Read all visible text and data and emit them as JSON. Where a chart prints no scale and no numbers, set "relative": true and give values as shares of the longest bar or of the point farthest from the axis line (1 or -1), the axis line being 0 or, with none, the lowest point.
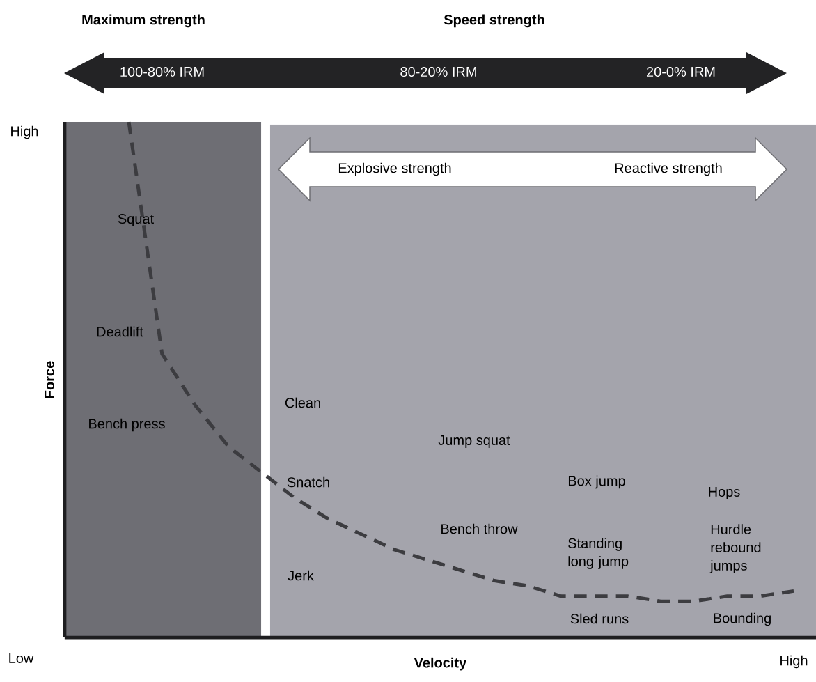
{
  "chart_data": {
    "type": "line",
    "relative": true,
    "xlabel": "Velocity",
    "ylabel": "Force",
    "line_style": "dashed",
    "categories": [
      null,
      null,
      null,
      null,
      null,
      null,
      null,
      null,
      null,
      null,
      null,
      null,
      null,
      null,
      null,
      null,
      null,
      null,
      null,
      null,
      null
    ],
    "series": [
      {
        "color": "#3c3c40",
        "values": [
          1.0,
          0.55,
          0.45,
          0.37,
          0.32,
          0.27,
          0.23,
          0.2,
          0.17,
          0.15,
          0.13,
          0.11,
          0.1,
          0.08,
          0.08,
          0.08,
          0.07,
          0.07,
          0.08,
          0.08,
          0.09
        ]
      }
    ],
    "annotations": [
      "Maximum strength",
      "Speed strength",
      "100-80% IRM",
      "80-20% IRM",
      "20-0% IRM",
      "Explosive strength",
      "Reactive strength",
      "Squat",
      "Deadlift",
      "Bench press",
      "Clean",
      "Snatch",
      "Jerk",
      "Jump squat",
      "Bench throw",
      "Box jump",
      "Standing long jump",
      "Sled runs",
      "Hops",
      "Hurdle rebound jumps",
      "Bounding",
      "High",
      "Low",
      "High"
    ]
  }
}
